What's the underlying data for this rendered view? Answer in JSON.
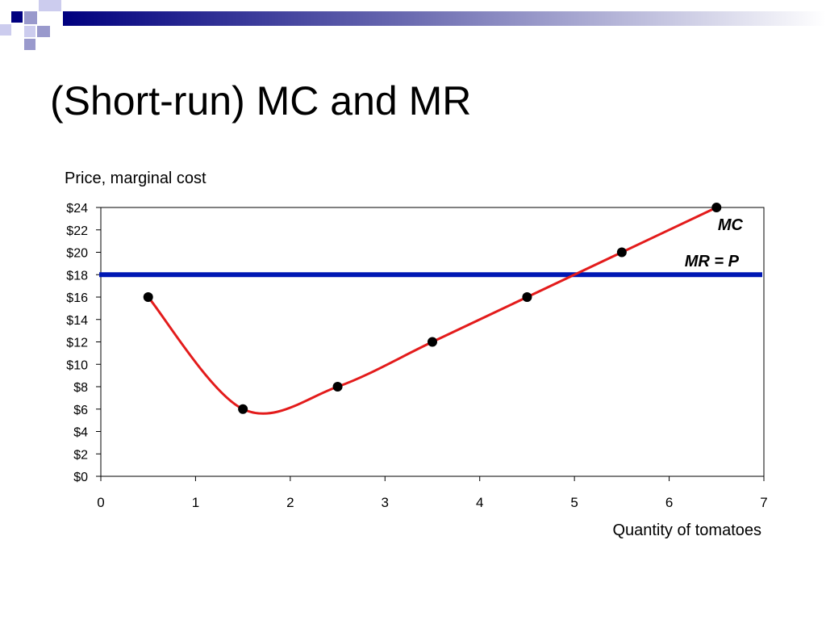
{
  "slide": {
    "title": "(Short-run) MC and MR"
  },
  "colors": {
    "title_bar_dark": "#00007f",
    "title_bar_light": "#9999cc",
    "mc_curve": "#e31b1b",
    "mr_line": "#0018b4",
    "points": "#000000",
    "axes": "#000000"
  },
  "chart_data": {
    "type": "line",
    "title": "",
    "ylabel": "Price, marginal cost",
    "xlabel": "Quantity of tomatoes",
    "xlim": [
      0,
      7
    ],
    "ylim": [
      0,
      24
    ],
    "x_ticks": [
      0,
      1,
      2,
      3,
      4,
      5,
      6,
      7
    ],
    "y_ticks": [
      "$0",
      "$2",
      "$4",
      "$6",
      "$8",
      "$10",
      "$12",
      "$14",
      "$16",
      "$18",
      "$20",
      "$22",
      "$24"
    ],
    "grid": false,
    "series": [
      {
        "name": "MC",
        "style": "smooth line with markers",
        "points": [
          {
            "x": 0.5,
            "y": 16
          },
          {
            "x": 1.5,
            "y": 6
          },
          {
            "x": 2.5,
            "y": 8
          },
          {
            "x": 3.5,
            "y": 12
          },
          {
            "x": 4.5,
            "y": 16
          },
          {
            "x": 5.5,
            "y": 20
          },
          {
            "x": 6.5,
            "y": 24
          }
        ]
      },
      {
        "name": "MR = P",
        "style": "horizontal line",
        "y": 18
      }
    ]
  }
}
